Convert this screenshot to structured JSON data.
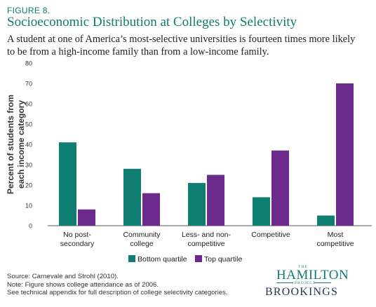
{
  "figure_label": "FIGURE 8.",
  "title": "Socioeconomic Distribution at Colleges by Selectivity",
  "subtitle": "A student at one of America’s most-selective universities is fourteen times more likely to be from a high-income family than from a low-income family.",
  "footnotes": [
    "Source: Carnevale and Strohl (2010).",
    "Note: Figure shows college attendance as of 2006.",
    "See technical appendix for full description of college selectivity categories."
  ],
  "logo": {
    "the": "THE",
    "hamilton": "HAMILTON",
    "project": "PROJECT",
    "brookings": "BROOKINGS"
  },
  "colors": {
    "bottom": "#0f7f74",
    "top": "#6b2a8c",
    "accent": "#0f7a72"
  },
  "chart_data": {
    "type": "bar",
    "categories": [
      [
        "No post-",
        "secondary"
      ],
      [
        "Community",
        "college"
      ],
      [
        "Less- and non-",
        "competitive"
      ],
      [
        "Competitive"
      ],
      [
        "Most",
        "competitive"
      ]
    ],
    "series": [
      {
        "name": "Bottom quartile",
        "values": [
          41,
          28,
          21,
          14,
          5
        ]
      },
      {
        "name": "Top quartile",
        "values": [
          8,
          16,
          25,
          37,
          70
        ]
      }
    ],
    "ylabel": [
      "Percent of students from",
      "each income category"
    ],
    "ylim": [
      0,
      80
    ],
    "yticks": [
      0,
      10,
      20,
      30,
      40,
      50,
      60,
      70,
      80
    ],
    "grid": false,
    "legend_position": "bottom-center"
  }
}
